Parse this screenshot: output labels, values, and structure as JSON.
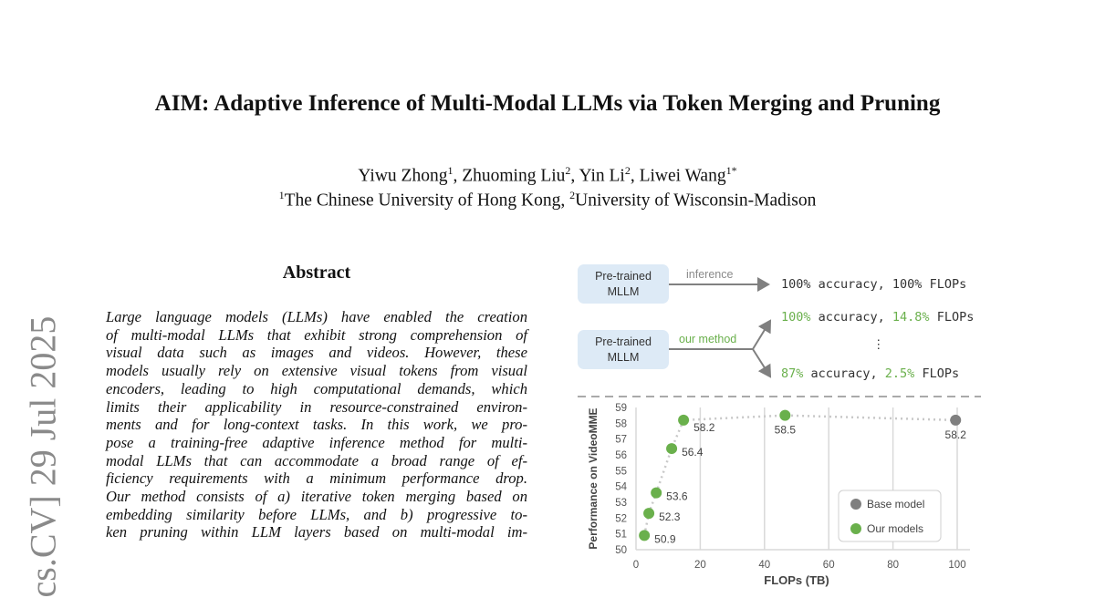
{
  "paper": {
    "title": "AIM: Adaptive Inference of Multi-Modal LLMs via Token Merging and Pruning",
    "authors": [
      {
        "name": "Yiwu Zhong",
        "aff": "1"
      },
      {
        "name": "Zhuoming Liu",
        "aff": "2"
      },
      {
        "name": "Yin Li",
        "aff": "2"
      },
      {
        "name": "Liwei Wang",
        "aff": "1*"
      }
    ],
    "affiliations": [
      {
        "id": "1",
        "name": "The Chinese University of Hong Kong"
      },
      {
        "id": "2",
        "name": "University of Wisconsin-Madison"
      }
    ],
    "abstract_heading": "Abstract",
    "abstract_lines": [
      "Large language models (LLMs) have enabled the creation",
      "of multi-modal LLMs that exhibit strong comprehension of",
      "visual data such as images and videos.  However, these",
      "models usually rely on extensive visual tokens from visual",
      "encoders, leading to high computational demands, which",
      "limits their applicability in resource-constrained environ-",
      "ments and for long-context tasks.  In this work, we pro-",
      "pose a training-free adaptive inference method for multi-",
      "modal LLMs that can accommodate a broad range of ef-",
      "ficiency requirements with a minimum performance drop.",
      "Our method consists of a) iterative token merging based on",
      "embedding similarity before LLMs, and b) progressive to-",
      "ken pruning within LLM layers based on multi-modal im-"
    ],
    "arxiv_stamp": "cs.CV]  29 Jul 2025"
  },
  "figure": {
    "box1": "Pre-trained MLLM",
    "box2": "Pre-trained MLLM",
    "arrow1_label": "inference",
    "arrow2_label": "our method",
    "result1": {
      "acc": "100%",
      "sep": " accuracy, ",
      "flops": "100%",
      "tail": " FLOPs"
    },
    "result2": {
      "acc": "100%",
      "sep": " accuracy, ",
      "flops": "14.8%",
      "tail": " FLOPs"
    },
    "ellipsis": "⋮",
    "result3": {
      "acc": "87%",
      "sep": " accuracy, ",
      "flops": "2.5%",
      "tail": " FLOPs"
    },
    "colors": {
      "green": "#6ab04c",
      "gray": "#7f7f7f",
      "box": "#ddeaf6"
    }
  },
  "chart_data": {
    "type": "scatter",
    "xlabel": "FLOPs (TB)",
    "ylabel": "Performance on VideoMME",
    "xlim": [
      0,
      100
    ],
    "ylim": [
      50,
      59
    ],
    "xticks": [
      "0",
      "20",
      "40",
      "60",
      "80",
      "100"
    ],
    "yticks": [
      "50",
      "51",
      "52",
      "53",
      "54",
      "55",
      "56",
      "57",
      "58",
      "59"
    ],
    "grid": "vertical",
    "legend_position": "bottom-right",
    "series": [
      {
        "name": "Base model",
        "color": "#7f7f7f",
        "points": [
          {
            "x": 99.5,
            "y": 58.2,
            "label": "58.2"
          }
        ]
      },
      {
        "name": "Our models",
        "color": "#6ab04c",
        "points": [
          {
            "x": 2.6,
            "y": 50.9,
            "label": "50.9"
          },
          {
            "x": 4.0,
            "y": 52.3,
            "label": "52.3"
          },
          {
            "x": 6.3,
            "y": 53.6,
            "label": "53.6"
          },
          {
            "x": 11.1,
            "y": 56.4,
            "label": "56.4"
          },
          {
            "x": 14.8,
            "y": 58.2,
            "label": "58.2"
          },
          {
            "x": 46.4,
            "y": 58.5,
            "label": "58.5"
          }
        ]
      }
    ]
  }
}
